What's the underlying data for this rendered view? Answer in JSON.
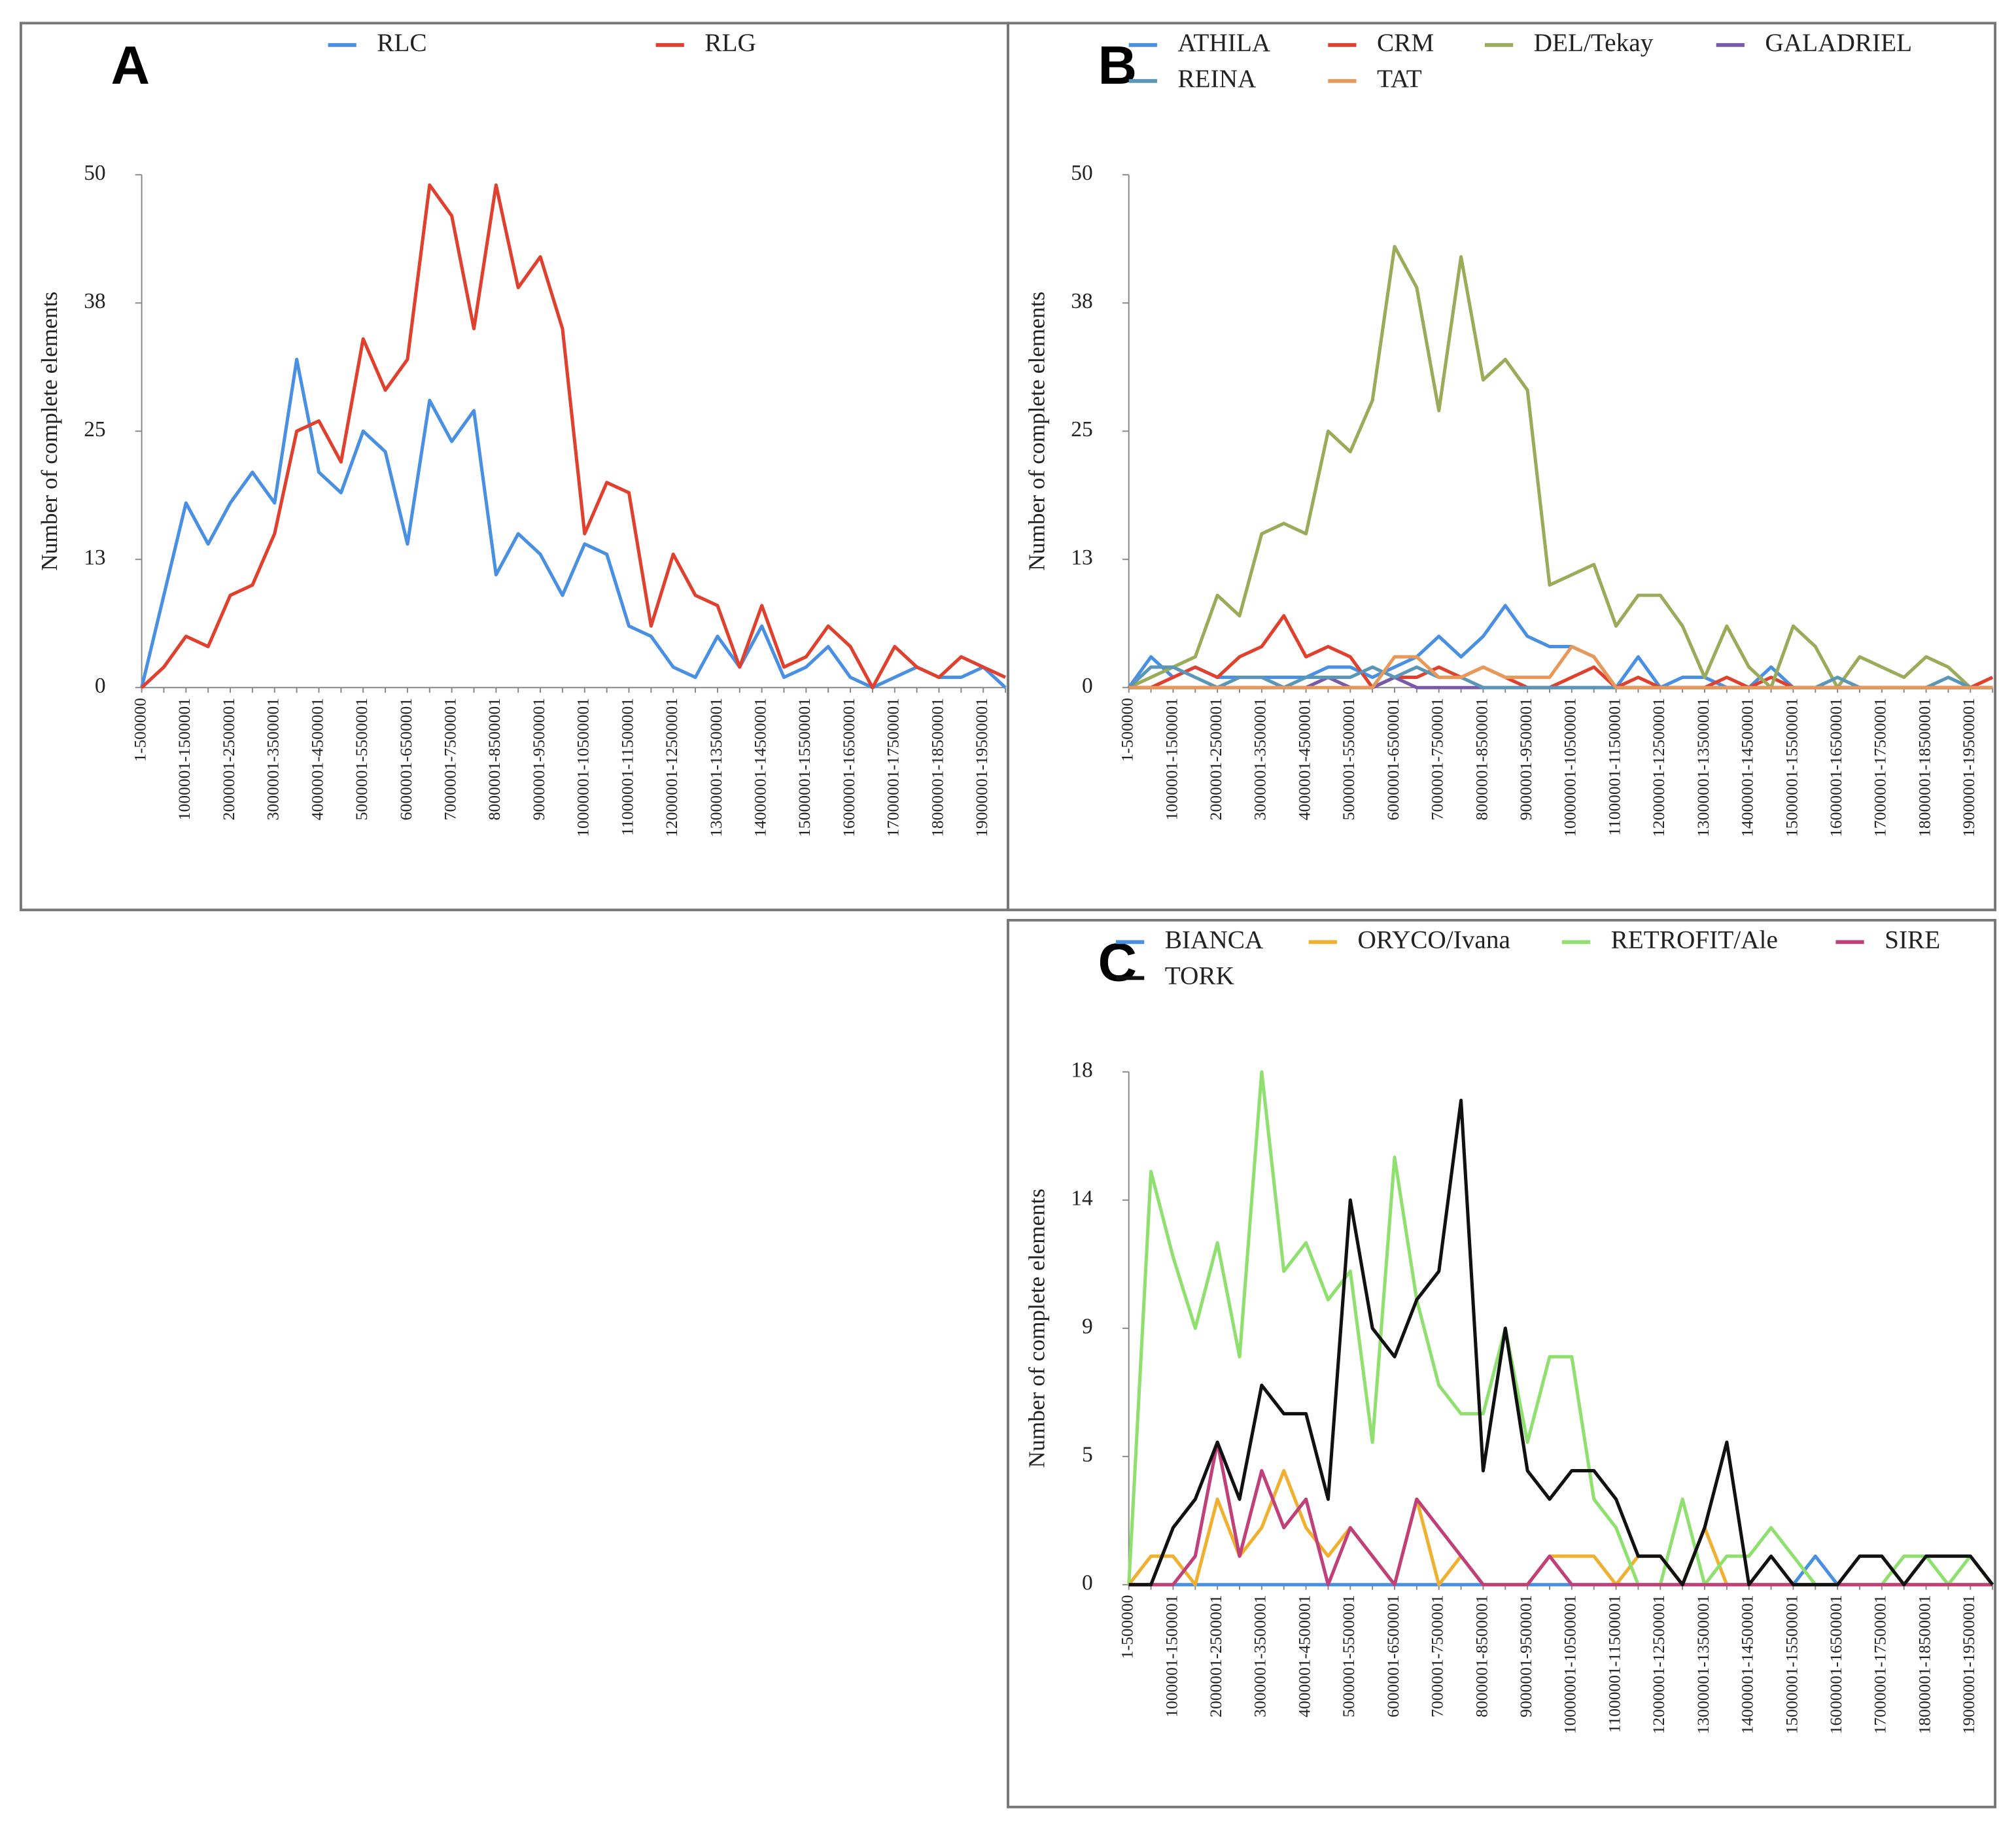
{
  "chart_data": [
    {
      "type": "line",
      "panel_label": "A",
      "ylabel": "Number of complete elements",
      "legend": "top",
      "categories": [
        "1-500000",
        null,
        "1000001-1500001",
        null,
        "2000001-2500001",
        null,
        "3000001-3500001",
        null,
        "4000001-4500001",
        null,
        "5000001-5500001",
        null,
        "6000001-6500001",
        null,
        "7000001-7500001",
        null,
        "8000001-8500001",
        null,
        "9000001-9500001",
        null,
        "10000001-10500001",
        null,
        "11000001-11500001",
        null,
        "12000001-12500001",
        null,
        "13000001-13500001",
        null,
        "14000001-14500001",
        null,
        "15000001-15500001",
        null,
        "16000001-16500001",
        null,
        "17000001-17500001",
        null,
        "18000001-18500001",
        null,
        "19000001-19500001",
        null
      ],
      "ylim": [
        0,
        50
      ],
      "yticks": [
        0,
        {
          "value": 12.5,
          "label": "13"
        },
        25,
        {
          "value": 37.5,
          "label": "38"
        },
        50
      ],
      "series": [
        {
          "name": "RLC",
          "color": "#4a90e2",
          "values": [
            0,
            9,
            18,
            14,
            18,
            21,
            18,
            32,
            21,
            19,
            25,
            23,
            14,
            28,
            24,
            27,
            11,
            15,
            13,
            9,
            14,
            13,
            6,
            5,
            2,
            1,
            5,
            2,
            6,
            1,
            2,
            4,
            1,
            0,
            1,
            2,
            1,
            1,
            2,
            0
          ]
        },
        {
          "name": "RLG",
          "color": "#e0402e",
          "values": [
            0,
            2,
            5,
            4,
            9,
            10,
            15,
            25,
            26,
            22,
            34,
            29,
            32,
            49,
            46,
            35,
            49,
            39,
            42,
            35,
            15,
            20,
            19,
            6,
            13,
            9,
            8,
            2,
            8,
            2,
            3,
            6,
            4,
            0,
            4,
            2,
            1,
            3,
            2,
            1
          ]
        }
      ]
    },
    {
      "type": "line",
      "panel_label": "B",
      "ylabel": "Number of complete elements",
      "legend": "top",
      "categories": [
        "1-500000",
        null,
        "1000001-1500001",
        null,
        "2000001-2500001",
        null,
        "3000001-3500001",
        null,
        "4000001-4500001",
        null,
        "5000001-5500001",
        null,
        "6000001-6500001",
        null,
        "7000001-7500001",
        null,
        "8000001-8500001",
        null,
        "9000001-9500001",
        null,
        "10000001-10500001",
        null,
        "11000001-11500001",
        null,
        "12000001-12500001",
        null,
        "13000001-13500001",
        null,
        "14000001-14500001",
        null,
        "15000001-15500001",
        null,
        "16000001-16500001",
        null,
        "17000001-17500001",
        null,
        "18000001-18500001",
        null,
        "19000001-19500001",
        null
      ],
      "ylim": [
        0,
        50
      ],
      "yticks": [
        0,
        {
          "value": 12.5,
          "label": "13"
        },
        25,
        {
          "value": 37.5,
          "label": "38"
        },
        50
      ],
      "series": [
        {
          "name": "ATHILA",
          "color": "#4a90e2",
          "values": [
            0,
            3,
            1,
            2,
            1,
            1,
            1,
            1,
            1,
            2,
            2,
            1,
            2,
            3,
            5,
            3,
            5,
            8,
            5,
            4,
            4,
            3,
            0,
            3,
            0,
            1,
            1,
            0,
            0,
            2,
            0,
            0,
            0,
            0,
            0,
            0,
            0,
            0,
            0,
            0
          ]
        },
        {
          "name": "CRM",
          "color": "#e0402e",
          "values": [
            0,
            0,
            1,
            2,
            1,
            3,
            4,
            7,
            3,
            4,
            3,
            0,
            1,
            1,
            2,
            1,
            2,
            1,
            0,
            0,
            1,
            2,
            0,
            1,
            0,
            0,
            0,
            1,
            0,
            1,
            0,
            0,
            0,
            0,
            0,
            0,
            0,
            0,
            0,
            1
          ]
        },
        {
          "name": "DEL/Tekay",
          "color": "#9aab5a",
          "values": [
            0,
            1,
            2,
            3,
            9,
            7,
            15,
            16,
            15,
            25,
            23,
            28,
            43,
            39,
            27,
            42,
            30,
            32,
            29,
            10,
            11,
            12,
            6,
            9,
            9,
            6,
            1,
            6,
            2,
            0,
            6,
            4,
            0,
            3,
            2,
            1,
            3,
            2,
            0,
            0
          ]
        },
        {
          "name": "GALADRIEL",
          "color": "#7a5aa8",
          "values": [
            0,
            0,
            0,
            0,
            0,
            0,
            0,
            0,
            0,
            1,
            0,
            0,
            1,
            0,
            0,
            0,
            0,
            0,
            0,
            0,
            0,
            0,
            0,
            0,
            0,
            0,
            0,
            0,
            0,
            0,
            0,
            0,
            0,
            0,
            0,
            0,
            0,
            0,
            0,
            0
          ]
        },
        {
          "name": "REINA",
          "color": "#5a96b8",
          "values": [
            0,
            2,
            2,
            1,
            0,
            1,
            1,
            0,
            1,
            1,
            1,
            2,
            1,
            2,
            1,
            1,
            0,
            0,
            0,
            0,
            0,
            0,
            0,
            0,
            0,
            0,
            0,
            0,
            0,
            0,
            0,
            0,
            1,
            0,
            0,
            0,
            0,
            1,
            0,
            0
          ]
        },
        {
          "name": "TAT",
          "color": "#e8995a",
          "values": [
            0,
            0,
            0,
            0,
            0,
            0,
            0,
            0,
            0,
            0,
            0,
            0,
            3,
            3,
            1,
            1,
            2,
            1,
            1,
            1,
            4,
            3,
            0,
            0,
            0,
            0,
            0,
            0,
            0,
            0,
            0,
            0,
            0,
            0,
            0,
            0,
            0,
            0,
            0,
            0
          ]
        }
      ]
    },
    {
      "type": "line",
      "panel_label": "C",
      "ylabel": "Number of complete elements",
      "legend": "top",
      "categories": [
        "1-500000",
        null,
        "1000001-1500001",
        null,
        "2000001-2500001",
        null,
        "3000001-3500001",
        null,
        "4000001-4500001",
        null,
        "5000001-5500001",
        null,
        "6000001-6500001",
        null,
        "7000001-7500001",
        null,
        "8000001-8500001",
        null,
        "9000001-9500001",
        null,
        "10000001-10500001",
        null,
        "11000001-11500001",
        null,
        "12000001-12500001",
        null,
        "13000001-13500001",
        null,
        "14000001-14500001",
        null,
        "15000001-15500001",
        null,
        "16000001-16500001",
        null,
        "17000001-17500001",
        null,
        "18000001-18500001",
        null,
        "19000001-19500001",
        null
      ],
      "ylim": [
        0,
        18
      ],
      "yticks": [
        0,
        {
          "value": 4.5,
          "label": "5"
        },
        9,
        {
          "value": 13.5,
          "label": "14"
        },
        18
      ],
      "series": [
        {
          "name": "BIANCA",
          "color": "#4a90e2",
          "values": [
            0,
            0,
            0,
            0,
            0,
            0,
            0,
            0,
            0,
            0,
            0,
            0,
            0,
            0,
            0,
            0,
            0,
            0,
            0,
            0,
            0,
            0,
            0,
            0,
            0,
            0,
            0,
            0,
            0,
            0,
            0,
            1,
            0,
            0,
            0,
            0,
            0,
            0,
            0,
            0
          ]
        },
        {
          "name": "ORYCO/Ivana",
          "color": "#f0b030",
          "values": [
            0,
            1,
            1,
            0,
            3,
            1,
            2,
            4,
            2,
            1,
            2,
            1,
            0,
            3,
            0,
            1,
            0,
            0,
            0,
            1,
            1,
            1,
            0,
            1,
            1,
            0,
            2,
            0,
            0,
            0,
            0,
            0,
            0,
            0,
            0,
            0,
            0,
            0,
            0,
            0
          ]
        },
        {
          "name": "RETROFIT/Ale",
          "color": "#90e070",
          "values": [
            0,
            14.5,
            11.5,
            9,
            12,
            8,
            18,
            11,
            12,
            10,
            11,
            5,
            15,
            10,
            7,
            6,
            6,
            9,
            5,
            8,
            8,
            3,
            2,
            0,
            0,
            3,
            0,
            1,
            1,
            2,
            1,
            0,
            0,
            0,
            0,
            1,
            1,
            0,
            1,
            0
          ]
        },
        {
          "name": "SIRE",
          "color": "#c0407a",
          "values": [
            0,
            0,
            0,
            1,
            5,
            1,
            4,
            2,
            3,
            0,
            2,
            1,
            0,
            3,
            2,
            1,
            0,
            0,
            0,
            1,
            0,
            0,
            0,
            0,
            0,
            0,
            0,
            0,
            0,
            0,
            0,
            0,
            0,
            0,
            0,
            0,
            0,
            0,
            0,
            0
          ]
        },
        {
          "name": "TORK",
          "color": "#111111",
          "values": [
            0,
            0,
            2,
            3,
            5,
            3,
            7,
            6,
            6,
            3,
            13.5,
            9,
            8,
            10,
            11,
            17,
            4,
            9,
            4,
            3,
            4,
            4,
            3,
            1,
            1,
            0,
            2,
            5,
            0,
            1,
            0,
            0,
            0,
            1,
            1,
            0,
            1,
            1,
            1,
            0
          ]
        }
      ]
    }
  ]
}
